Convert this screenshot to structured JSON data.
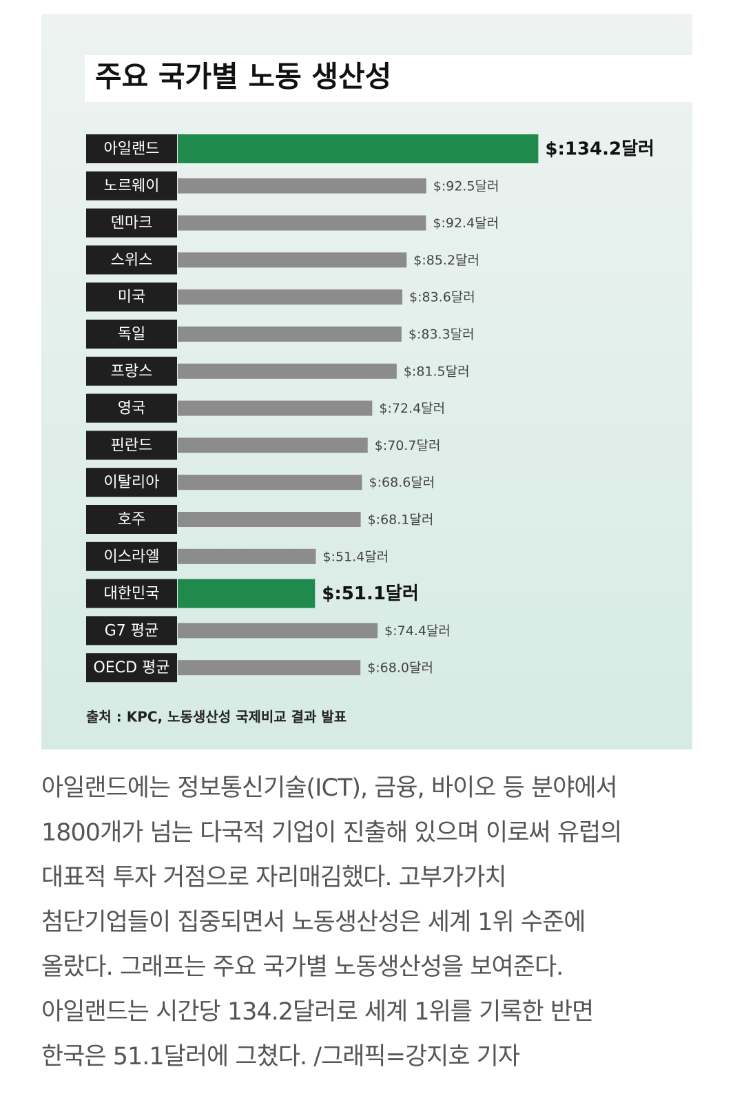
{
  "chart_data": {
    "type": "bar",
    "orientation": "horizontal",
    "title": "주요 국가별 노동 생산성",
    "categories": [
      "아일랜드",
      "노르웨이",
      "덴마크",
      "스위스",
      "미국",
      "독일",
      "프랑스",
      "영국",
      "핀란드",
      "이탈리아",
      "호주",
      "이스라엘",
      "대한민국",
      "G7 평균",
      "OECD 평균"
    ],
    "values": [
      134.2,
      92.5,
      92.4,
      85.2,
      83.6,
      83.3,
      81.5,
      72.4,
      70.7,
      68.6,
      68.1,
      51.4,
      51.1,
      74.4,
      68.0
    ],
    "value_labels": [
      "$:134.2달러",
      "$:92.5달러",
      "$:92.4달러",
      "$:85.2달러",
      "$:83.6달러",
      "$:83.3달러",
      "$:81.5달러",
      "$:72.4달러",
      "$:70.7달러",
      "$:68.6달러",
      "$:68.1달러",
      "$:51.4달러",
      "$:51.1달러",
      "$:74.4달러",
      "$:68.0달러"
    ],
    "color": "#8c8c8c",
    "colors": [
      "#1f8a4c",
      "#8c8c8c",
      "#8c8c8c",
      "#8c8c8c",
      "#8c8c8c",
      "#8c8c8c",
      "#8c8c8c",
      "#8c8c8c",
      "#8c8c8c",
      "#8c8c8c",
      "#8c8c8c",
      "#8c8c8c",
      "#1f8a4c",
      "#8c8c8c",
      "#8c8c8c"
    ],
    "source": "출처 : KPC, 노동생산성 국제비교 결과 발표"
  },
  "article": {
    "lines": [
      "아일랜드에는 정보통신기술(ICT), 금융, 바이오 등 분야에서",
      "1800개가 넘는 다국적 기업이 진출해 있으며 이로써 유럽의",
      "대표적 투자 거점으로 자리매김했다. 고부가가치",
      "첨단기업들이 집중되면서 노동생산성은 세계 1위 수준에",
      "올랐다. 그래프는 주요 국가별 노동생산성을 보여준다.",
      "아일랜드는 시간당 134.2달러로 세계 1위를 기록한 반면",
      "한국은 51.1달러에 그쳤다. /그래픽=강지호 기자"
    ]
  }
}
